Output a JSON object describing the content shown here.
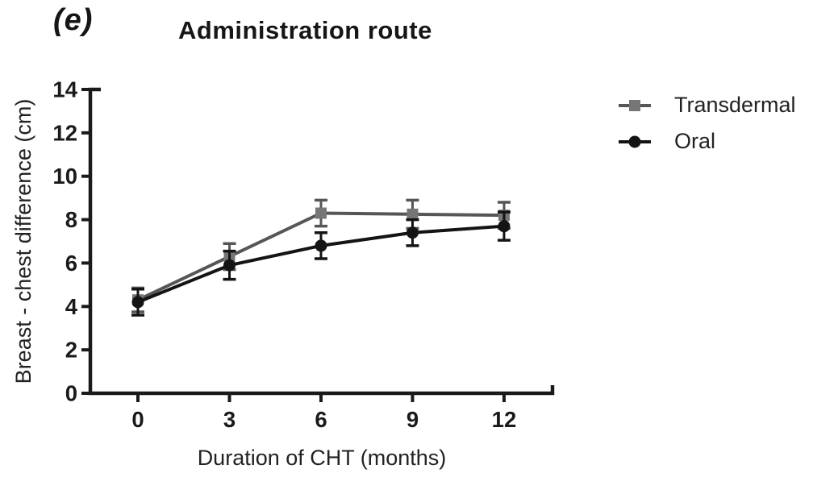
{
  "panel_label": "(e)",
  "chart_data": {
    "type": "line",
    "title": "Administration route",
    "xlabel": "Duration of CHT (months)",
    "ylabel": "Breast - chest difference (cm)",
    "x": [
      0,
      3,
      6,
      9,
      12
    ],
    "x_ticks": [
      "0",
      "3",
      "6",
      "9",
      "12"
    ],
    "y_ticks": [
      0,
      2,
      4,
      6,
      8,
      10,
      12,
      14
    ],
    "xlim": [
      -1.55,
      13.6
    ],
    "ylim": [
      0,
      14
    ],
    "grid": false,
    "legend_position": "right",
    "axis_color": "#1a1a1a",
    "error_bars": true,
    "series": [
      {
        "name": "Transdermal",
        "marker": "square",
        "color": "#767676",
        "line_color": "#565656",
        "values": [
          4.3,
          6.3,
          8.3,
          8.25,
          8.2
        ],
        "errors": [
          0.55,
          0.6,
          0.6,
          0.65,
          0.6
        ]
      },
      {
        "name": "Oral",
        "marker": "circle",
        "color": "#141414",
        "line_color": "#141414",
        "values": [
          4.2,
          5.9,
          6.8,
          7.4,
          7.7
        ],
        "errors": [
          0.6,
          0.65,
          0.6,
          0.6,
          0.65
        ]
      }
    ]
  }
}
